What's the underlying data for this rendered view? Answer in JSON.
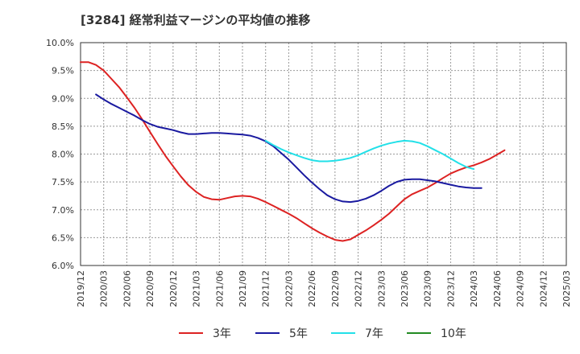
{
  "chart_data": {
    "type": "line",
    "title": "[3284]  経常利益マージンの平均値の推移",
    "y_ticks": [
      "10.0%",
      "9.5%",
      "9.0%",
      "8.5%",
      "8.0%",
      "7.5%",
      "7.0%",
      "6.5%",
      "6.0%"
    ],
    "ylim": [
      6.0,
      10.0
    ],
    "x_ticks": [
      "2019/12",
      "2020/03",
      "2020/06",
      "2020/09",
      "2020/12",
      "2021/03",
      "2021/06",
      "2021/09",
      "2021/12",
      "2022/03",
      "2022/06",
      "2022/09",
      "2022/12",
      "2023/03",
      "2023/06",
      "2023/09",
      "2023/12",
      "2024/03",
      "2024/06",
      "2024/09",
      "2024/12",
      "2025/03"
    ],
    "grid": true,
    "legend_position": "bottom",
    "series": [
      {
        "name": "3年",
        "color": "#dd2222",
        "values": [
          9.65,
          9.65,
          9.6,
          9.5,
          9.35,
          9.2,
          9.02,
          8.83,
          8.62,
          8.4,
          8.18,
          7.97,
          7.78,
          7.6,
          7.44,
          7.32,
          7.23,
          7.19,
          7.18,
          7.21,
          7.24,
          7.25,
          7.24,
          7.2,
          7.14,
          7.07,
          7.0,
          6.93,
          6.85,
          6.76,
          6.67,
          6.59,
          6.52,
          6.46,
          6.44,
          6.47,
          6.55,
          6.63,
          6.72,
          6.82,
          6.93,
          7.06,
          7.19,
          7.28,
          7.34,
          7.4,
          7.48,
          7.57,
          7.65,
          7.71,
          7.76,
          7.8,
          7.85,
          7.91,
          7.99,
          8.07
        ]
      },
      {
        "name": "5年",
        "color": "#1a1aa0",
        "values": [
          null,
          null,
          9.07,
          8.98,
          8.9,
          8.83,
          8.76,
          8.69,
          8.61,
          8.54,
          8.49,
          8.46,
          8.43,
          8.39,
          8.36,
          8.36,
          8.37,
          8.38,
          8.38,
          8.37,
          8.36,
          8.35,
          8.33,
          8.29,
          8.23,
          8.14,
          8.02,
          7.9,
          7.76,
          7.62,
          7.49,
          7.37,
          7.26,
          7.19,
          7.15,
          7.14,
          7.16,
          7.2,
          7.26,
          7.34,
          7.43,
          7.5,
          7.54,
          7.55,
          7.55,
          7.53,
          7.51,
          7.48,
          7.45,
          7.42,
          7.4,
          7.39,
          7.39
        ]
      },
      {
        "name": "7年",
        "color": "#22e0e8",
        "values": [
          null,
          null,
          null,
          null,
          null,
          null,
          null,
          null,
          null,
          null,
          null,
          null,
          null,
          null,
          null,
          null,
          null,
          null,
          null,
          null,
          null,
          null,
          null,
          null,
          8.24,
          8.16,
          8.09,
          8.03,
          7.98,
          7.93,
          7.89,
          7.87,
          7.87,
          7.88,
          7.9,
          7.93,
          7.98,
          8.04,
          8.1,
          8.15,
          8.19,
          8.22,
          8.24,
          8.23,
          8.2,
          8.14,
          8.07,
          8.0,
          7.92,
          7.84,
          7.77,
          7.73
        ]
      },
      {
        "name": "10年",
        "color": "#228b22",
        "values": []
      }
    ]
  }
}
